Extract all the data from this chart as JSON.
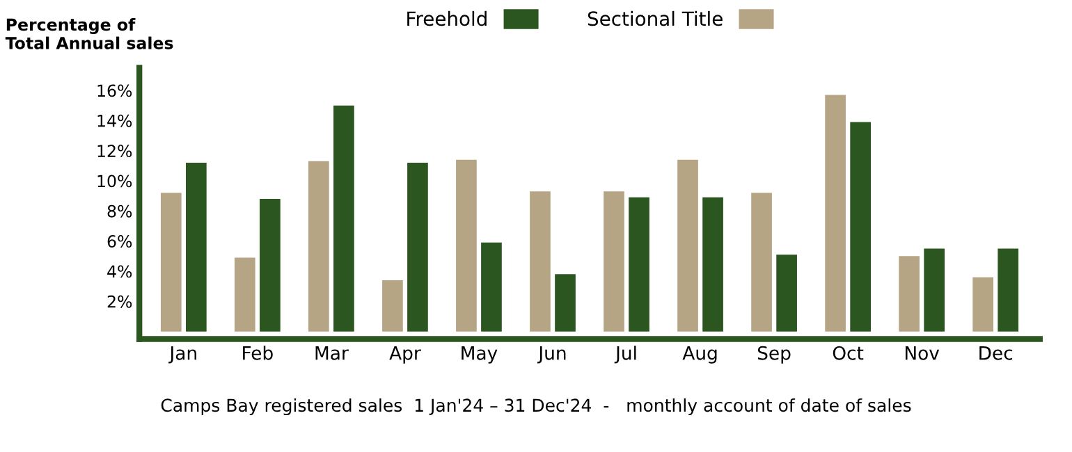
{
  "chart_data": {
    "type": "bar",
    "ylabel": "Percentage of\nTotal Annual sales",
    "categories": [
      "Jan",
      "Feb",
      "Mar",
      "Apr",
      "May",
      "Jun",
      "Jul",
      "Aug",
      "Sep",
      "Oct",
      "Nov",
      "Dec"
    ],
    "series": [
      {
        "name": "Sectional Title",
        "color": "#b5a584",
        "values": [
          9.2,
          4.9,
          11.3,
          3.4,
          11.4,
          9.3,
          9.3,
          11.4,
          9.2,
          15.7,
          5.0,
          3.6
        ]
      },
      {
        "name": "Freehold",
        "color": "#2b5620",
        "values": [
          11.2,
          8.8,
          15.0,
          11.2,
          5.9,
          3.8,
          8.9,
          8.9,
          5.1,
          13.9,
          5.5,
          5.5
        ]
      }
    ],
    "ylim": [
      -0.5,
      17.5
    ],
    "yticks": [
      {
        "value": 2,
        "label": "2%"
      },
      {
        "value": 4,
        "label": "4%"
      },
      {
        "value": 6,
        "label": "6%"
      },
      {
        "value": 8,
        "label": "8%"
      },
      {
        "value": 10,
        "label": "10%"
      },
      {
        "value": 12,
        "label": "12%"
      },
      {
        "value": 14,
        "label": "14%"
      },
      {
        "value": 16,
        "label": "16%"
      }
    ],
    "grid": false,
    "legend": "top",
    "annotations": [
      "Camps Bay registered sales  1 Jan'24 – 31 Dec'24  -   monthly account of date of sales"
    ]
  }
}
